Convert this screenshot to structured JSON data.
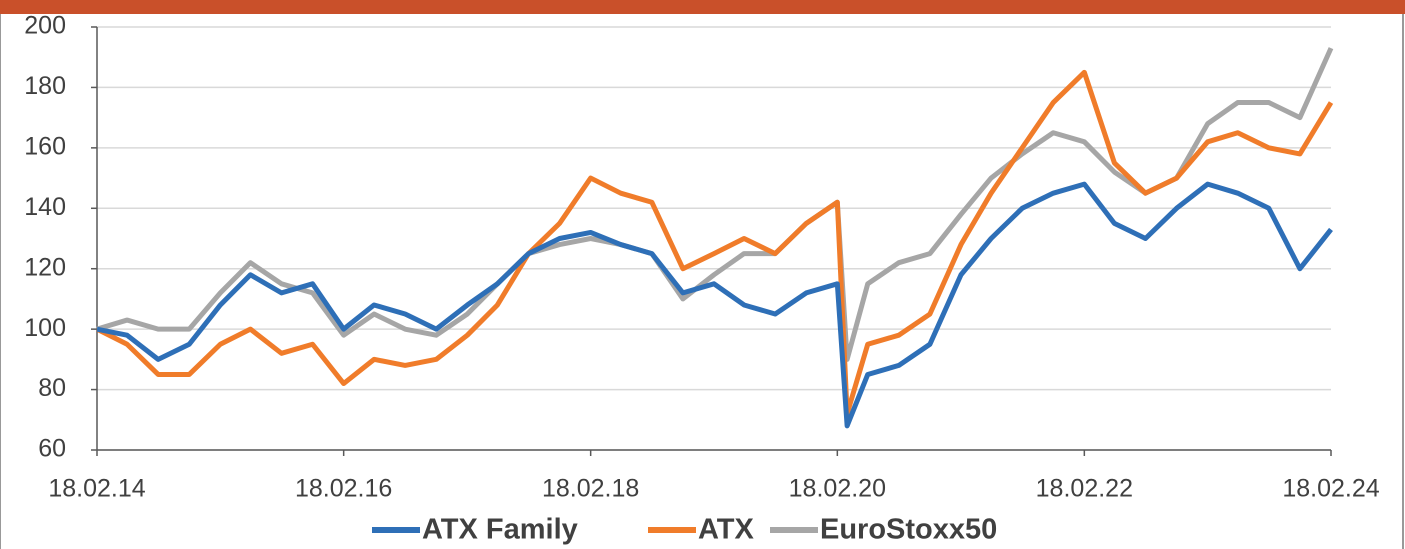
{
  "chart_data": {
    "type": "line",
    "x": [
      "2014-02-18",
      "2014-05-18",
      "2014-08-18",
      "2014-11-18",
      "2015-02-18",
      "2015-05-18",
      "2015-08-18",
      "2015-11-18",
      "2016-02-18",
      "2016-05-18",
      "2016-08-18",
      "2016-11-18",
      "2017-02-18",
      "2017-05-18",
      "2017-08-18",
      "2017-11-18",
      "2018-02-18",
      "2018-05-18",
      "2018-08-18",
      "2018-11-18",
      "2019-02-18",
      "2019-05-18",
      "2019-08-18",
      "2019-11-18",
      "2020-02-18",
      "2020-03-18",
      "2020-05-18",
      "2020-08-18",
      "2020-11-18",
      "2021-02-18",
      "2021-05-18",
      "2021-08-18",
      "2021-11-18",
      "2022-02-18",
      "2022-05-18",
      "2022-08-18",
      "2022-11-18",
      "2023-02-18",
      "2023-05-18",
      "2023-08-18",
      "2023-11-18",
      "2024-02-18"
    ],
    "series": [
      {
        "name": "ATX Family",
        "color": "#2e6fb7",
        "values": [
          100,
          98,
          90,
          95,
          108,
          118,
          112,
          115,
          100,
          108,
          105,
          100,
          108,
          115,
          125,
          130,
          132,
          128,
          125,
          112,
          115,
          108,
          105,
          112,
          115,
          68,
          85,
          88,
          95,
          118,
          130,
          140,
          145,
          148,
          135,
          130,
          140,
          148,
          145,
          140,
          120,
          133
        ]
      },
      {
        "name": "ATX",
        "color": "#f07c2a",
        "values": [
          100,
          95,
          85,
          85,
          95,
          100,
          92,
          95,
          82,
          90,
          88,
          90,
          98,
          108,
          125,
          135,
          150,
          145,
          142,
          120,
          125,
          130,
          125,
          135,
          142,
          72,
          95,
          98,
          105,
          128,
          145,
          160,
          175,
          185,
          155,
          145,
          150,
          162,
          165,
          160,
          158,
          175
        ]
      },
      {
        "name": "EuroStoxx50",
        "color": "#a6a6a6",
        "values": [
          100,
          103,
          100,
          100,
          112,
          122,
          115,
          112,
          98,
          105,
          100,
          98,
          105,
          115,
          125,
          128,
          130,
          128,
          125,
          110,
          118,
          125,
          125,
          135,
          142,
          90,
          115,
          122,
          125,
          138,
          150,
          158,
          165,
          162,
          152,
          145,
          150,
          168,
          175,
          175,
          170,
          193
        ]
      }
    ],
    "xlim": [
      "2014-02-18",
      "2024-02-18"
    ],
    "xticks": [
      {
        "value": "2014-02-18",
        "label": "18.02.14"
      },
      {
        "value": "2016-02-18",
        "label": "18.02.16"
      },
      {
        "value": "2018-02-18",
        "label": "18.02.18"
      },
      {
        "value": "2020-02-18",
        "label": "18.02.20"
      },
      {
        "value": "2022-02-18",
        "label": "18.02.22"
      },
      {
        "value": "2024-02-18",
        "label": "18.02.24"
      }
    ],
    "ylim": [
      60,
      200
    ],
    "yticks": [
      60,
      80,
      100,
      120,
      140,
      160,
      180,
      200
    ],
    "grid": true
  }
}
